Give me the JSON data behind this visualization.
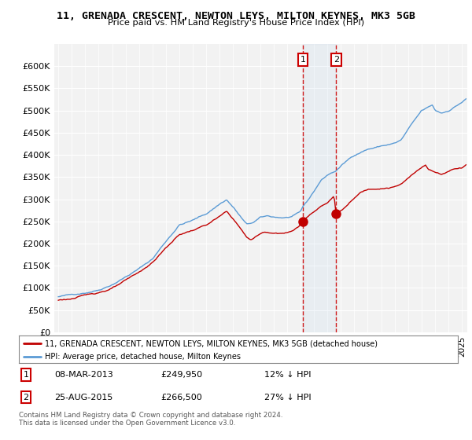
{
  "title": "11, GRENADA CRESCENT, NEWTON LEYS, MILTON KEYNES, MK3 5GB",
  "subtitle": "Price paid vs. HM Land Registry's House Price Index (HPI)",
  "legend_line1": "11, GRENADA CRESCENT, NEWTON LEYS, MILTON KEYNES, MK3 5GB (detached house)",
  "legend_line2": "HPI: Average price, detached house, Milton Keynes",
  "annotation1": {
    "label": "1",
    "date": "08-MAR-2013",
    "price": "£249,950",
    "pct": "12% ↓ HPI"
  },
  "annotation2": {
    "label": "2",
    "date": "25-AUG-2015",
    "price": "£266,500",
    "pct": "27% ↓ HPI"
  },
  "footnote1": "Contains HM Land Registry data © Crown copyright and database right 2024.",
  "footnote2": "This data is licensed under the Open Government Licence v3.0.",
  "hpi_color": "#5B9BD5",
  "price_color": "#C00000",
  "background_color": "#FFFFFF",
  "plot_bg_color": "#F2F2F2",
  "grid_color": "#FFFFFF",
  "ylim": [
    0,
    650000
  ],
  "yticks": [
    0,
    50000,
    100000,
    150000,
    200000,
    250000,
    300000,
    350000,
    400000,
    450000,
    500000,
    550000,
    600000
  ],
  "sale1_x": 2013.18,
  "sale1_y": 249950,
  "sale2_x": 2015.65,
  "sale2_y": 266500,
  "vline1_x": 2013.18,
  "vline2_x": 2015.65,
  "xlim_left": 1994.7,
  "xlim_right": 2025.4
}
